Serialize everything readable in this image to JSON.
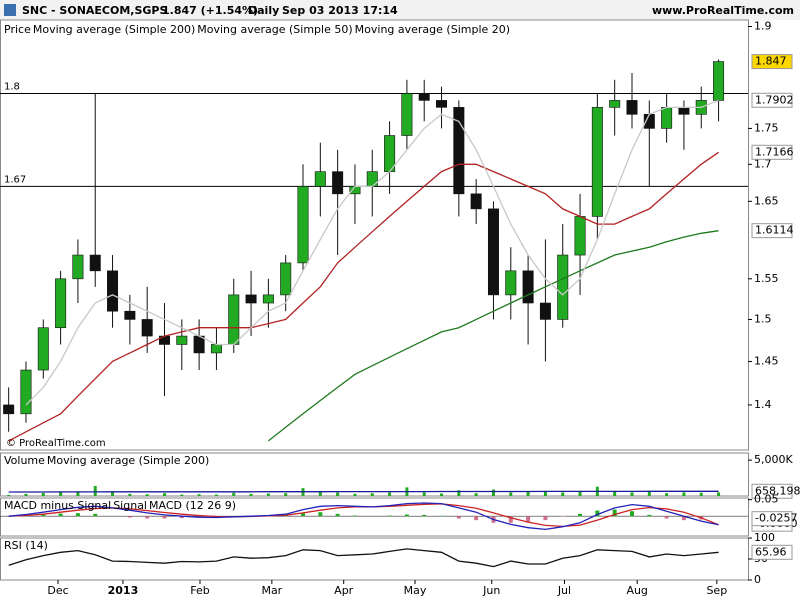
{
  "chart_data": [
    {
      "type": "candlestick",
      "title": "SNC - SONAECOM,SGPS",
      "quote": "1.847 (+1.54%)",
      "period": "Daily",
      "timestamp": "Sep 03 2013 17:14",
      "source": "www.ProRealTime.com",
      "watermark": "© ProRealTime.com",
      "x": [
        0.5,
        1.5,
        2.5,
        3.5,
        4.5,
        5.5,
        6.5,
        7.5,
        8.5,
        9.5,
        10.5,
        11.5,
        12.5,
        13.5,
        14.5,
        15.5,
        16.5,
        17.5,
        18.5,
        19.5,
        20.5,
        21.5,
        22.5,
        23.5,
        24.5,
        25.5,
        26.5,
        27.5,
        28.5,
        29.5,
        30.5,
        31.5,
        32.5,
        33.5,
        34.5,
        35.5,
        36.5,
        37.5,
        38.5,
        39.5,
        40.5,
        41.5
      ],
      "xlim": [
        0,
        43.2
      ],
      "xticks": [
        {
          "value": 3.35,
          "label": "Dec"
        },
        {
          "value": 7.1,
          "label": "2013"
        },
        {
          "value": 11.55,
          "label": "Feb"
        },
        {
          "value": 15.7,
          "label": "Mar"
        },
        {
          "value": 19.85,
          "label": "Apr"
        },
        {
          "value": 23.97,
          "label": "May"
        },
        {
          "value": 28.4,
          "label": "Jun"
        },
        {
          "value": 32.6,
          "label": "Jul"
        },
        {
          "value": 36.8,
          "label": "Aug"
        },
        {
          "value": 41.4,
          "label": "Sep"
        }
      ],
      "ylim": [
        1.35,
        1.91
      ],
      "log": true,
      "yticks": [
        1.4,
        1.45,
        1.5,
        1.55,
        1.65,
        1.7,
        1.75,
        1.9
      ],
      "hlines": [
        1.8,
        1.67
      ],
      "series": [
        {
          "name": "Price",
          "up_color": "#22aa22",
          "down_color": "#111111",
          "box_color": "#ffd700",
          "open": [
            1.4,
            1.39,
            1.44,
            1.49,
            1.55,
            1.58,
            1.56,
            1.51,
            1.5,
            1.48,
            1.47,
            1.48,
            1.46,
            1.47,
            1.53,
            1.52,
            1.53,
            1.57,
            1.67,
            1.69,
            1.66,
            1.67,
            1.69,
            1.74,
            1.8,
            1.79,
            1.78,
            1.66,
            1.64,
            1.53,
            1.56,
            1.52,
            1.5,
            1.58,
            1.63,
            1.78,
            1.79,
            1.77,
            1.75,
            1.78,
            1.77,
            1.79
          ],
          "high": [
            1.42,
            1.45,
            1.5,
            1.56,
            1.6,
            1.8,
            1.58,
            1.53,
            1.54,
            1.52,
            1.5,
            1.5,
            1.49,
            1.55,
            1.56,
            1.55,
            1.58,
            1.7,
            1.73,
            1.72,
            1.7,
            1.72,
            1.76,
            1.82,
            1.82,
            1.81,
            1.79,
            1.68,
            1.65,
            1.59,
            1.58,
            1.6,
            1.62,
            1.66,
            1.8,
            1.82,
            1.83,
            1.79,
            1.8,
            1.79,
            1.81,
            1.85
          ],
          "low": [
            1.37,
            1.38,
            1.43,
            1.47,
            1.52,
            1.54,
            1.49,
            1.47,
            1.46,
            1.41,
            1.44,
            1.44,
            1.44,
            1.46,
            1.48,
            1.49,
            1.51,
            1.56,
            1.63,
            1.58,
            1.62,
            1.63,
            1.66,
            1.72,
            1.76,
            1.75,
            1.63,
            1.62,
            1.5,
            1.5,
            1.47,
            1.45,
            1.49,
            1.53,
            1.6,
            1.74,
            1.75,
            1.67,
            1.73,
            1.72,
            1.75,
            1.76
          ],
          "close": [
            1.39,
            1.44,
            1.49,
            1.55,
            1.58,
            1.56,
            1.51,
            1.5,
            1.48,
            1.47,
            1.48,
            1.46,
            1.47,
            1.53,
            1.52,
            1.53,
            1.57,
            1.67,
            1.69,
            1.66,
            1.67,
            1.69,
            1.74,
            1.8,
            1.79,
            1.78,
            1.66,
            1.64,
            1.53,
            1.56,
            1.52,
            1.5,
            1.58,
            1.63,
            1.78,
            1.79,
            1.77,
            1.75,
            1.78,
            1.77,
            1.79,
            1.847
          ]
        },
        {
          "name": "Moving average (Simple 200)",
          "color": "#1f7a1f",
          "values": [
            null,
            null,
            null,
            null,
            null,
            null,
            null,
            null,
            null,
            null,
            null,
            null,
            null,
            null,
            null,
            1.36,
            1.375,
            1.39,
            1.405,
            1.42,
            1.435,
            1.445,
            1.455,
            1.465,
            1.475,
            1.485,
            1.49,
            1.5,
            1.51,
            1.52,
            1.53,
            1.54,
            1.55,
            1.56,
            1.57,
            1.58,
            1.585,
            1.59,
            1.597,
            1.603,
            1.608,
            1.6114
          ]
        },
        {
          "name": "Moving average (Simple 50)",
          "color": "#b22222",
          "values": [
            1.36,
            1.37,
            1.38,
            1.39,
            1.41,
            1.43,
            1.45,
            1.46,
            1.47,
            1.48,
            1.485,
            1.49,
            1.49,
            1.49,
            1.49,
            1.495,
            1.5,
            1.52,
            1.54,
            1.57,
            1.59,
            1.61,
            1.63,
            1.65,
            1.67,
            1.69,
            1.7,
            1.7,
            1.69,
            1.68,
            1.67,
            1.66,
            1.64,
            1.63,
            1.62,
            1.62,
            1.63,
            1.64,
            1.66,
            1.68,
            1.7,
            1.7166
          ]
        },
        {
          "name": "Moving average (Simple 20)",
          "color": "#c8c8c8",
          "values": [
            null,
            1.4,
            1.42,
            1.45,
            1.49,
            1.52,
            1.53,
            1.52,
            1.51,
            1.5,
            1.49,
            1.48,
            1.47,
            1.47,
            1.49,
            1.51,
            1.52,
            1.56,
            1.6,
            1.64,
            1.67,
            1.67,
            1.69,
            1.72,
            1.75,
            1.77,
            1.76,
            1.72,
            1.67,
            1.62,
            1.58,
            1.55,
            1.53,
            1.55,
            1.6,
            1.66,
            1.72,
            1.77,
            1.78,
            1.78,
            1.78,
            1.7902
          ]
        }
      ]
    },
    {
      "type": "bar",
      "ylim": [
        0,
        6000000
      ],
      "yticks": [
        {
          "value": 5000000,
          "label": "5,000K"
        }
      ],
      "series": [
        {
          "name": "Volume",
          "color": "#22aa22",
          "values": [
            150000,
            300000,
            420000,
            500000,
            650000,
            1400000,
            500000,
            300000,
            250000,
            400000,
            200000,
            250000,
            200000,
            450000,
            300000,
            350000,
            400000,
            1100000,
            700000,
            500000,
            300000,
            400000,
            500000,
            1200000,
            500000,
            350000,
            800000,
            400000,
            900000,
            500000,
            600000,
            700000,
            500000,
            600000,
            1300000,
            700000,
            500000,
            600000,
            400000,
            500000,
            450000,
            500000
          ]
        },
        {
          "name": "Moving average (Simple 200)",
          "color": "#1a1aa0",
          "values": [
            560000,
            562000,
            565000,
            568000,
            572000,
            578000,
            580000,
            582000,
            584000,
            586000,
            587000,
            588000,
            589000,
            590000,
            592000,
            594000,
            597000,
            602000,
            605000,
            607000,
            608000,
            610000,
            612000,
            618000,
            620000,
            621000,
            624000,
            625000,
            629000,
            630000,
            632000,
            635000,
            636000,
            638000,
            644000,
            646000,
            647000,
            649000,
            650000,
            652000,
            655000,
            658198
          ],
          "last_label": "658,198"
        }
      ]
    },
    {
      "type": "macd",
      "ylim": [
        -0.06,
        0.055
      ],
      "yticks": [
        0.05
      ],
      "series": [
        {
          "name": "MACD minus Signal",
          "color": "#d0708a",
          "positive_color": "#22aa22",
          "negative_color": "#d0708a",
          "values": [
            0,
            0.003,
            0.006,
            0.008,
            0.009,
            0.007,
            0,
            -0.004,
            -0.007,
            -0.007,
            -0.006,
            -0.005,
            -0.003,
            0,
            0.001,
            0.001,
            0.003,
            0.01,
            0.012,
            0.007,
            0.002,
            0,
            0.002,
            0.005,
            0.004,
            0.001,
            -0.007,
            -0.012,
            -0.02,
            -0.02,
            -0.017,
            -0.012,
            -0.001,
            0.007,
            0.017,
            0.02,
            0.015,
            0.004,
            -0.007,
            -0.012,
            -0.01,
            0
          ],
          "last_label": "-0.0000"
        },
        {
          "name": "Signal",
          "color": "#cc2222",
          "values": [
            0,
            0.002,
            0.006,
            0.012,
            0.018,
            0.023,
            0.025,
            0.022,
            0.017,
            0.011,
            0.006,
            0.002,
            -0.001,
            -0.002,
            -0.001,
            0.001,
            0.003,
            0.01,
            0.018,
            0.025,
            0.028,
            0.028,
            0.03,
            0.033,
            0.036,
            0.037,
            0.032,
            0.024,
            0.01,
            -0.005,
            -0.018,
            -0.028,
            -0.031,
            -0.027,
            -0.012,
            0.005,
            0.02,
            0.026,
            0.022,
            0.012,
            -0.005,
            -0.0257
          ]
        },
        {
          "name": "MACD (12 26 9)",
          "color": "#2222bb",
          "values": [
            0,
            0.005,
            0.012,
            0.02,
            0.027,
            0.03,
            0.025,
            0.018,
            0.01,
            0.004,
            0,
            -0.003,
            -0.004,
            -0.002,
            0,
            0.002,
            0.006,
            0.02,
            0.03,
            0.032,
            0.03,
            0.028,
            0.032,
            0.038,
            0.04,
            0.038,
            0.025,
            0.012,
            -0.01,
            -0.025,
            -0.035,
            -0.04,
            -0.032,
            -0.02,
            0.005,
            0.025,
            0.035,
            0.03,
            0.015,
            0,
            -0.015,
            -0.0257
          ]
        }
      ]
    },
    {
      "type": "line",
      "ylim": [
        0,
        100
      ],
      "yticks": [
        100,
        50,
        0
      ],
      "series": [
        {
          "name": "RSI (14)",
          "color": "#111111",
          "values": [
            35,
            48,
            58,
            66,
            70,
            60,
            45,
            44,
            42,
            40,
            44,
            43,
            45,
            55,
            52,
            53,
            58,
            72,
            70,
            58,
            60,
            62,
            68,
            74,
            70,
            66,
            45,
            40,
            32,
            45,
            38,
            38,
            52,
            58,
            72,
            70,
            68,
            55,
            62,
            58,
            62,
            65.96
          ]
        }
      ]
    }
  ]
}
